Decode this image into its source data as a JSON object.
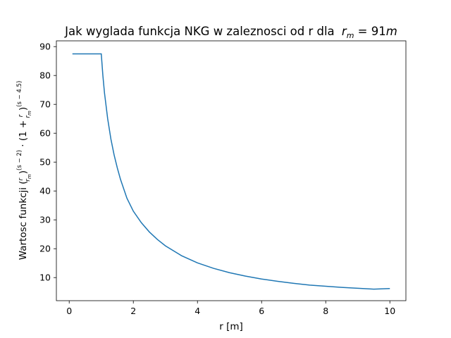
{
  "chart_data": {
    "type": "line",
    "title": "Jak wyglada funkcja NKG w zaleznosci od r dla",
    "title_math": {
      "var": "r",
      "sub": "m",
      "rest": " = 91",
      "unit": "m"
    },
    "xlabel": "r [m]",
    "ylabel": {
      "prefix": "Wartosc funkcji (",
      "num": "r",
      "den": "r",
      "den_sub": "m",
      "exp1": "(s − 2)",
      "mid": " · (1 + ",
      "exp2": "(s − 4.5)"
    },
    "xlim": [
      -0.4,
      10.5
    ],
    "ylim": [
      2,
      92
    ],
    "xticks": [
      0,
      2,
      4,
      6,
      8,
      10
    ],
    "yticks": [
      10,
      20,
      30,
      40,
      50,
      60,
      70,
      80,
      90
    ],
    "grid": false,
    "legend": "none",
    "series": [
      {
        "color": "#1f77b4",
        "x": [
          0.1,
          0.5,
          1.0,
          1.05,
          1.1,
          1.2,
          1.3,
          1.4,
          1.5,
          1.6,
          1.8,
          2.0,
          2.25,
          2.5,
          2.75,
          3.0,
          3.5,
          4.0,
          4.5,
          5.0,
          5.5,
          6.0,
          6.5,
          7.0,
          7.5,
          8.0,
          8.5,
          9.0,
          9.5,
          10.0
        ],
        "y": [
          87.5,
          87.5,
          87.5,
          80.0,
          74.0,
          65.0,
          58.0,
          52.5,
          48.0,
          44.0,
          37.5,
          33.0,
          29.0,
          25.8,
          23.2,
          21.0,
          17.6,
          15.1,
          13.2,
          11.7,
          10.5,
          9.5,
          8.7,
          8.0,
          7.4,
          7.0,
          6.6,
          6.3,
          6.0,
          6.2
        ]
      }
    ]
  }
}
